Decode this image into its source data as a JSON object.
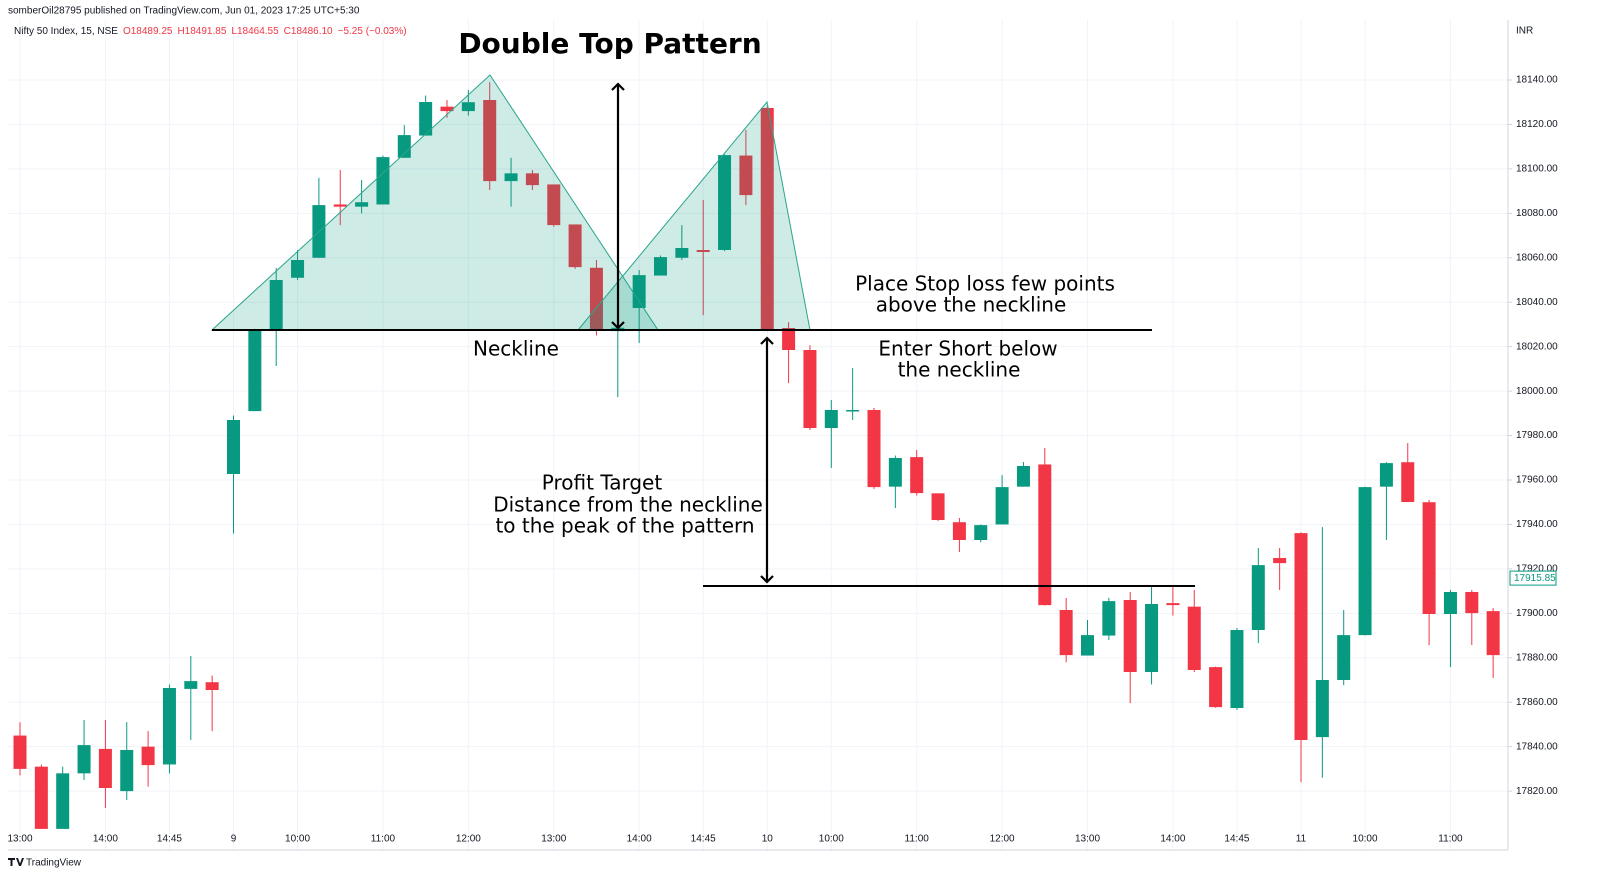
{
  "header": {
    "published": "somberOil28795 published on TradingView.com, Jun 01, 2023 17:25 UTC+5:30",
    "symbol": "Nifty 50 Index, 15, NSE",
    "ohlc": [
      "O18489.25",
      "H18491.85",
      "L18464.55",
      "C18486.10",
      "−5.25 (−0.03%)"
    ],
    "currency": "INR"
  },
  "footer": {
    "brand": "TradingView"
  },
  "chart_data": {
    "type": "candlestick",
    "title": "Double Top Pattern",
    "annotations": {
      "stop_loss": [
        "Place Stop loss few points",
        "above the neckline"
      ],
      "neckline": [
        "Neckline"
      ],
      "entry": [
        "Enter Short below",
        "the neckline"
      ],
      "target": [
        "Profit Target",
        "Distance from the neckline",
        "to the peak of the pattern"
      ]
    },
    "up_color": "#089981",
    "down_color": "#f23645",
    "grid": true,
    "categories": [
      "13:00",
      null,
      null,
      null,
      "14:00",
      null,
      null,
      "14:45",
      null,
      null,
      "9",
      null,
      null,
      "10:00",
      null,
      null,
      null,
      "11:00",
      null,
      null,
      null,
      "12:00",
      null,
      null,
      null,
      "13:00",
      null,
      null,
      null,
      "14:00",
      null,
      null,
      "14:45",
      null,
      null,
      "10",
      null,
      null,
      "10:00",
      null,
      null,
      null,
      "11:00",
      null,
      null,
      null,
      "12:00",
      null,
      null,
      null,
      "13:00",
      null,
      null,
      null,
      "14:00",
      null,
      null,
      "14:45",
      null,
      null,
      "11",
      null,
      null,
      "10:00",
      null,
      null,
      null,
      "11:00",
      null,
      null,
      null
    ],
    "open": [
      17845,
      17831,
      17803,
      17828,
      17839,
      17820,
      17840,
      17832,
      17866,
      17869,
      17962.7,
      17991,
      18027.5,
      18051,
      18060,
      18084,
      18083,
      18084,
      18105,
      18115,
      18128,
      18126,
      18131,
      18094.5,
      18098,
      18093,
      18075,
      18055.5,
      18027,
      18037.4,
      18052,
      18060,
      18063.5,
      18063.5,
      18106,
      18127.4,
      18028.4,
      18018.5,
      17983.4,
      17991,
      17991.5,
      17957,
      17970.3,
      17954,
      17941,
      17933,
      17940,
      17957,
      17967,
      17901.5,
      17881,
      17890,
      17906,
      17873.6,
      17904.6,
      17903,
      17875.8,
      17857.4,
      17892.5,
      17924.9,
      17936.1,
      17844.3,
      17870,
      17890.2,
      17957,
      17968,
      17950,
      17899.7,
      17909.6,
      17901,
      17881
    ],
    "high": [
      17851,
      17832,
      17831,
      17852,
      17852,
      17851,
      17847,
      17868,
      17880.8,
      17872,
      17989,
      18028,
      18055.4,
      18063.5,
      18096,
      18099.5,
      18095,
      18106,
      18119.7,
      18133,
      18131,
      18135.5,
      18139,
      18105,
      18099.5,
      18093,
      18075,
      18059,
      18041,
      18054.5,
      18061,
      18074.7,
      18086,
      18106.5,
      18117.5,
      18128,
      18031,
      18020.7,
      17996,
      18010.4,
      17992.4,
      17971,
      17973.5,
      17954,
      17942.9,
      17940,
      17962.2,
      17968.1,
      17974.4,
      17906.9,
      17897,
      17907,
      17909.6,
      17912.7,
      17912.7,
      17910.5,
      17876,
      17893.4,
      17929.4,
      17929.4,
      17936.5,
      17938.8,
      17901.5,
      17957,
      17968,
      17976.6,
      17951,
      17910.5,
      17910.5,
      17902.4,
      17916
    ],
    "low": [
      17827,
      17803,
      17803,
      17825,
      17812.4,
      17816,
      17822,
      17828,
      17843,
      17847,
      17936,
      17991,
      18011.3,
      18050,
      18060,
      18074.7,
      18080,
      18084,
      18105,
      18115,
      18123,
      18124,
      18090.5,
      18083,
      18090.5,
      18074,
      18055,
      18025,
      17997.3,
      18021.6,
      18052,
      18059,
      18034.2,
      18063,
      18083.7,
      18027,
      18003.6,
      17982.5,
      17965.4,
      17987,
      17956,
      17947.4,
      17953,
      17941.5,
      17927.6,
      17932,
      17940,
      17957,
      17903.5,
      17878,
      17881,
      17888,
      17859.6,
      17868,
      17899,
      17873.6,
      17857.5,
      17856.5,
      17886.6,
      17910.5,
      17824,
      17826,
      17867.7,
      17890,
      17933,
      17950,
      17885.7,
      17875.8,
      17885.7,
      17870.9,
      17881
    ],
    "close": [
      17830,
      17803,
      17828,
      17840.7,
      17821.4,
      17838.5,
      17831.7,
      17866.4,
      17869.5,
      17865.5,
      17987,
      18027.5,
      18050,
      18059,
      18083.7,
      18083,
      18085,
      18105.3,
      18115.2,
      18130.1,
      18126,
      18130,
      18094.5,
      18098,
      18092.7,
      18074.7,
      18055.8,
      18027.5,
      18028.5,
      18052.2,
      18060.3,
      18064.4,
      18062.6,
      18106.2,
      18088.2,
      18027.5,
      18018.5,
      17983.4,
      17991.5,
      17991.5,
      17956.8,
      17969.9,
      17954.1,
      17942,
      17933,
      17939.7,
      17956.8,
      17966.3,
      17903.7,
      17881.2,
      17890.2,
      17905.5,
      17873.6,
      17904.2,
      17903.7,
      17874.5,
      17857.8,
      17892.5,
      17921.7,
      17922.6,
      17843,
      17870,
      17890.2,
      17956.8,
      17967.6,
      17950.1,
      17899.7,
      17909.6,
      17900.1,
      17881.2,
      17915.85
    ],
    "ylim": [
      17793.5,
      18167
    ],
    "yticks": [
      {
        "value": 17820,
        "label": "17820.00"
      },
      {
        "value": 17840,
        "label": "17840.00"
      },
      {
        "value": 17860,
        "label": "17860.00"
      },
      {
        "value": 17880,
        "label": "17880.00"
      },
      {
        "value": 17900,
        "label": "17900.00"
      },
      {
        "value": 17920,
        "label": "17920.00"
      },
      {
        "value": 17940,
        "label": "17940.00"
      },
      {
        "value": 17960,
        "label": "17960.00"
      },
      {
        "value": 17980,
        "label": "17980.00"
      },
      {
        "value": 18000,
        "label": "18000.00"
      },
      {
        "value": 18020,
        "label": "18020.00"
      },
      {
        "value": 18040,
        "label": "18040.00"
      },
      {
        "value": 18060,
        "label": "18060.00"
      },
      {
        "value": 18080,
        "label": "18080.00"
      },
      {
        "value": 18100,
        "label": "18100.00"
      },
      {
        "value": 18120,
        "label": "18120.00"
      },
      {
        "value": 18140,
        "label": "18140.00"
      }
    ]
  }
}
